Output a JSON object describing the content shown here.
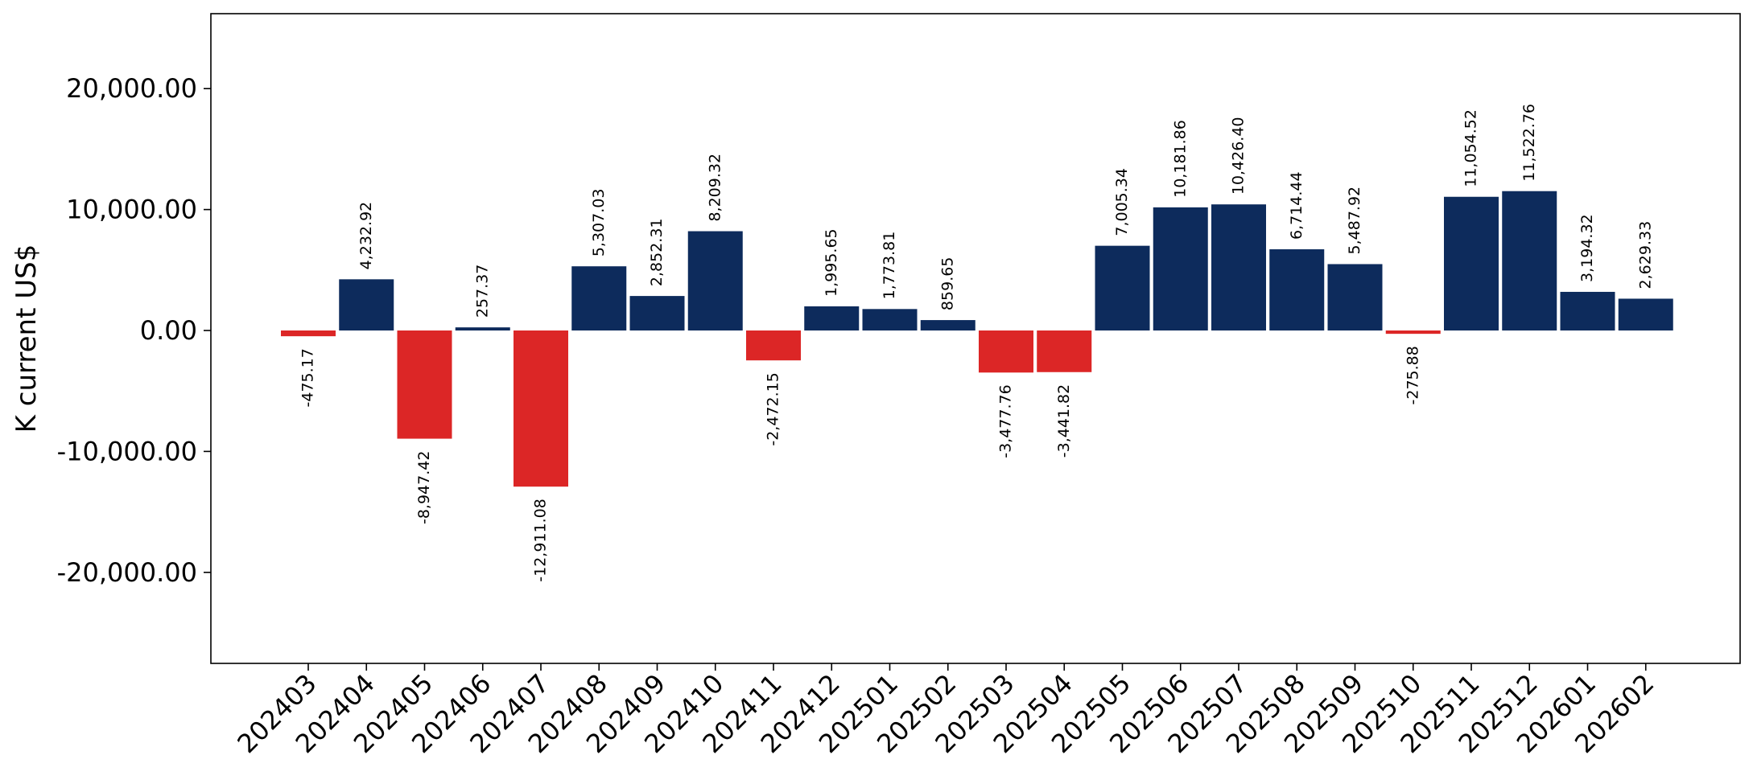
{
  "chart_data": {
    "type": "bar",
    "ylabel": "K current US$",
    "xlabel": "",
    "title": "",
    "ylim": [
      -27000,
      26500
    ],
    "yticks": [
      -20000,
      -10000,
      0,
      10000,
      20000
    ],
    "ytick_labels": [
      "-20,000.00",
      "-10,000.00",
      "0.00",
      "10,000.00",
      "20,000.00"
    ],
    "grid": false,
    "colors": {
      "positive": "#0d2b5c",
      "negative": "#dc2626"
    },
    "categories": [
      "202403",
      "202404",
      "202405",
      "202406",
      "202407",
      "202408",
      "202409",
      "202410",
      "202411",
      "202412",
      "202501",
      "202502",
      "202503",
      "202504",
      "202505",
      "202506",
      "202507",
      "202508",
      "202509",
      "202510",
      "202511",
      "202512",
      "202601",
      "202602"
    ],
    "values": [
      -475.17,
      4232.92,
      -8947.42,
      257.37,
      -12911.08,
      5307.03,
      2852.31,
      8209.32,
      -2472.15,
      1995.65,
      1773.81,
      859.65,
      -3477.76,
      -3441.82,
      7005.34,
      10181.86,
      10426.4,
      6714.44,
      5487.92,
      -275.88,
      11054.52,
      11522.76,
      3194.32,
      2629.33
    ],
    "value_labels": [
      "-475.17",
      "4,232.92",
      "-8,947.42",
      "257.37",
      "-12,911.08",
      "5,307.03",
      "2,852.31",
      "8,209.32",
      "-2,472.15",
      "1,995.65",
      "1,773.81",
      "859.65",
      "-3,477.76",
      "-3,441.82",
      "7,005.34",
      "10,181.86",
      "10,426.40",
      "6,714.44",
      "5,487.92",
      "-275.88",
      "11,054.52",
      "11,522.76",
      "3,194.32",
      "2,629.33"
    ]
  }
}
